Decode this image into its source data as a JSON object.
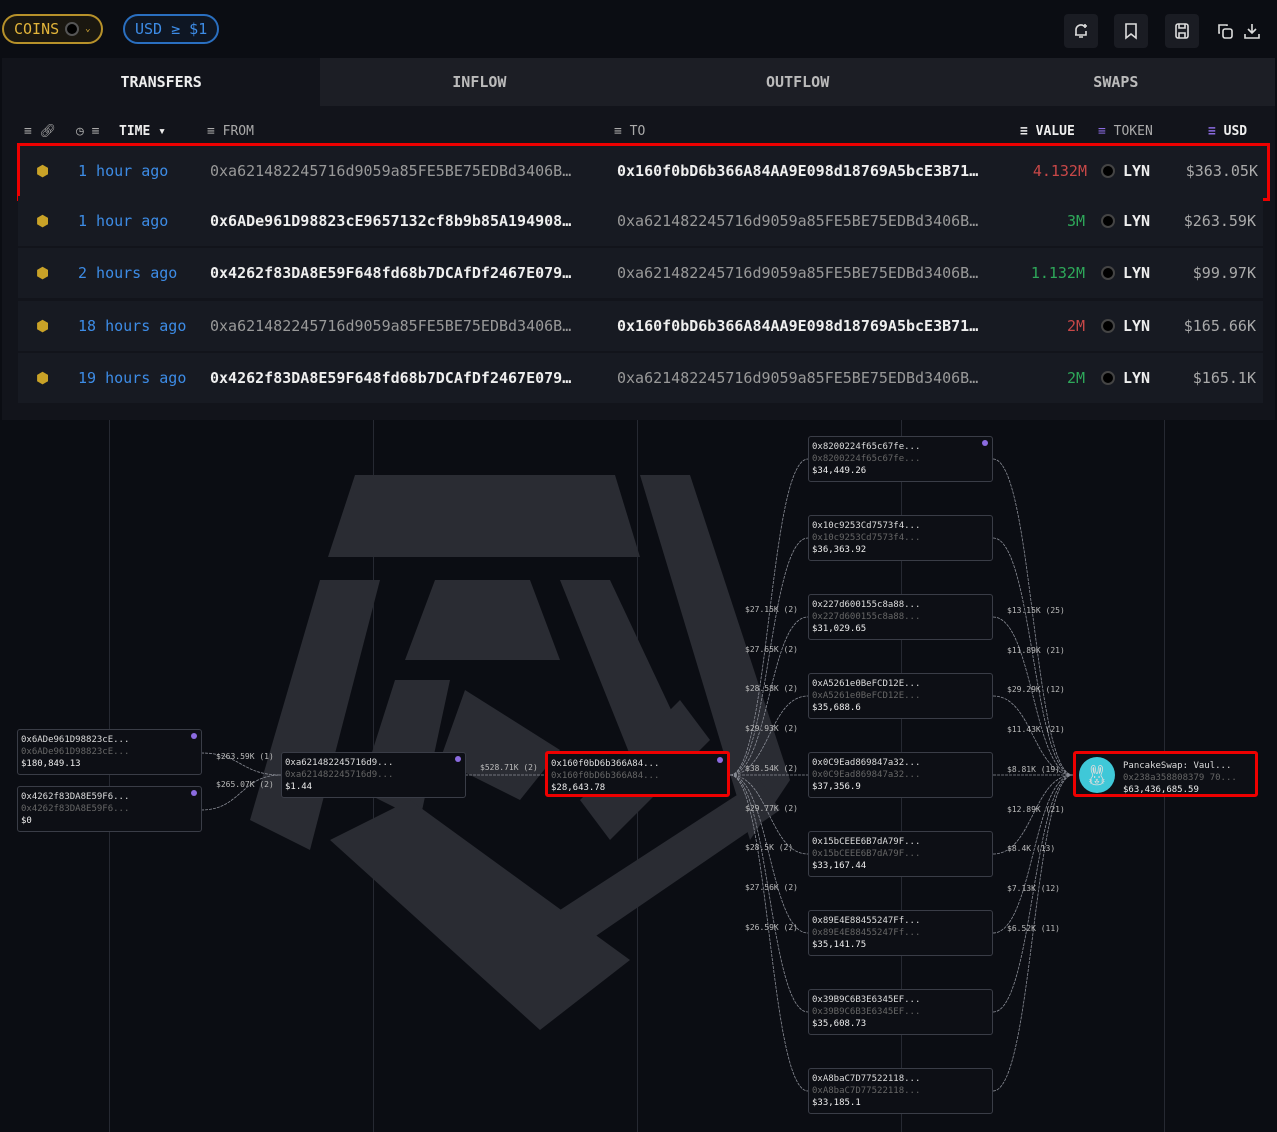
{
  "toolbar": {
    "coins_label": "COINS",
    "usd_filter": "USD ≥ $1",
    "icons": [
      "bell-plus-icon",
      "bookmark-icon",
      "save-icon",
      "copy-icon",
      "download-icon"
    ]
  },
  "tabs": [
    "TRANSFERS",
    "INFLOW",
    "OUTFLOW",
    "SWAPS"
  ],
  "columns": {
    "time": "TIME",
    "from": "FROM",
    "to": "TO",
    "value": "VALUE",
    "token": "TOKEN",
    "usd": "USD"
  },
  "rows": [
    {
      "time": "1 hour ago",
      "from": "0xa621482245716d9059a85FE5BE75EDBd3406B…",
      "to": "0x160f0bD6b366A84AA9E098d18769A5bcE3B71…",
      "value": "4.132M",
      "value_color": "#c84848",
      "token": "LYN",
      "usd": "$363.05K",
      "from_bold": false,
      "to_bold": true
    },
    {
      "time": "1 hour ago",
      "from": "0x6ADe961D98823cE9657132cf8b9b85A194908…",
      "to": "0xa621482245716d9059a85FE5BE75EDBd3406B…",
      "value": "3M",
      "value_color": "#2ea85a",
      "token": "LYN",
      "usd": "$263.59K",
      "from_bold": true,
      "to_bold": false
    },
    {
      "time": "2 hours ago",
      "from": "0x4262f83DA8E59F648fd68b7DCAfDf2467E079…",
      "to": "0xa621482245716d9059a85FE5BE75EDBd3406B…",
      "value": "1.132M",
      "value_color": "#2ea85a",
      "token": "LYN",
      "usd": "$99.97K",
      "from_bold": true,
      "to_bold": false
    },
    {
      "time": "18 hours ago",
      "from": "0xa621482245716d9059a85FE5BE75EDBd3406B…",
      "to": "0x160f0bD6b366A84AA9E098d18769A5bcE3B71…",
      "value": "2M",
      "value_color": "#c84848",
      "token": "LYN",
      "usd": "$165.66K",
      "from_bold": false,
      "to_bold": true
    },
    {
      "time": "19 hours ago",
      "from": "0x4262f83DA8E59F648fd68b7DCAfDf2467E079…",
      "to": "0xa621482245716d9059a85FE5BE75EDBd3406B…",
      "value": "2M",
      "value_color": "#2ea85a",
      "token": "LYN",
      "usd": "$165.1K",
      "from_bold": true,
      "to_bold": false
    }
  ],
  "graph": {
    "sources": [
      {
        "a": "0x6ADe961D98823cE...",
        "b": "0x6ADe961D98823cE...",
        "v": "$180,849.13",
        "edge": "$263.59K (1)"
      },
      {
        "a": "0x4262f83DA8E59F6...",
        "b": "0x4262f83DA8E59F6...",
        "v": "$0",
        "edge": "$265.07K (2)"
      }
    ],
    "mid": {
      "a": "0xa621482245716d9...",
      "b": "0xa621482245716d9...",
      "v": "$1.44",
      "edge": "$528.71K (2)"
    },
    "focus": {
      "a": "0x160f0bD6b366A84...",
      "b": "0x160f0bD6b366A84...",
      "v": "$28,643.78"
    },
    "targets": [
      {
        "a": "0x8200224f65c67fe...",
        "b": "0x8200224f65c67fe...",
        "v": "$34,449.26"
      },
      {
        "a": "0x10c9253Cd7573f4...",
        "b": "0x10c9253Cd7573f4...",
        "v": "$36,363.92"
      },
      {
        "a": "0x227d600155c8a88...",
        "b": "0x227d600155c8a88...",
        "v": "$31,029.65"
      },
      {
        "a": "0xA5261e0BeFCD12E...",
        "b": "0xA5261e0BeFCD12E...",
        "v": "$35,688.6"
      },
      {
        "a": "0x0C9Ead869847a32...",
        "b": "0x0C9Ead869847a32...",
        "v": "$37,356.9"
      },
      {
        "a": "0x15bCEEE6B7dA79F...",
        "b": "0x15bCEEE6B7dA79F...",
        "v": "$33,167.44"
      },
      {
        "a": "0x89E4E88455247Ff...",
        "b": "0x89E4E88455247Ff...",
        "v": "$35,141.75"
      },
      {
        "a": "0x39B9C6B3E6345EF...",
        "b": "0x39B9C6B3E6345EF...",
        "v": "$35,608.73"
      },
      {
        "a": "0xA8baC7D77522118...",
        "b": "0xA8baC7D77522118...",
        "v": "$33,185.1"
      }
    ],
    "in_edges": [
      "$27.15K (2)",
      "$27.65K (2)",
      "$28.58K (2)",
      "$29.93K (2)",
      "$38.54K (2)",
      "$29.77K (2)",
      "$28.5K (2)",
      "$27.56K (2)",
      "$26.59K (2)"
    ],
    "out_edges": [
      "$13.15K (25)",
      "$11.89K (21)",
      "$29.29K (12)",
      "$11.43K (21)",
      "$8.81K (19)",
      "$12.89K (21)",
      "$8.4K (13)",
      "$7.13K (12)",
      "$6.52K (11)"
    ],
    "sink": {
      "a": "PancakeSwap: Vaul...",
      "b": "0x238a358808379 70...",
      "v": "$63,436,685.59",
      "icon": "pancakeswap-bunny-icon"
    }
  }
}
